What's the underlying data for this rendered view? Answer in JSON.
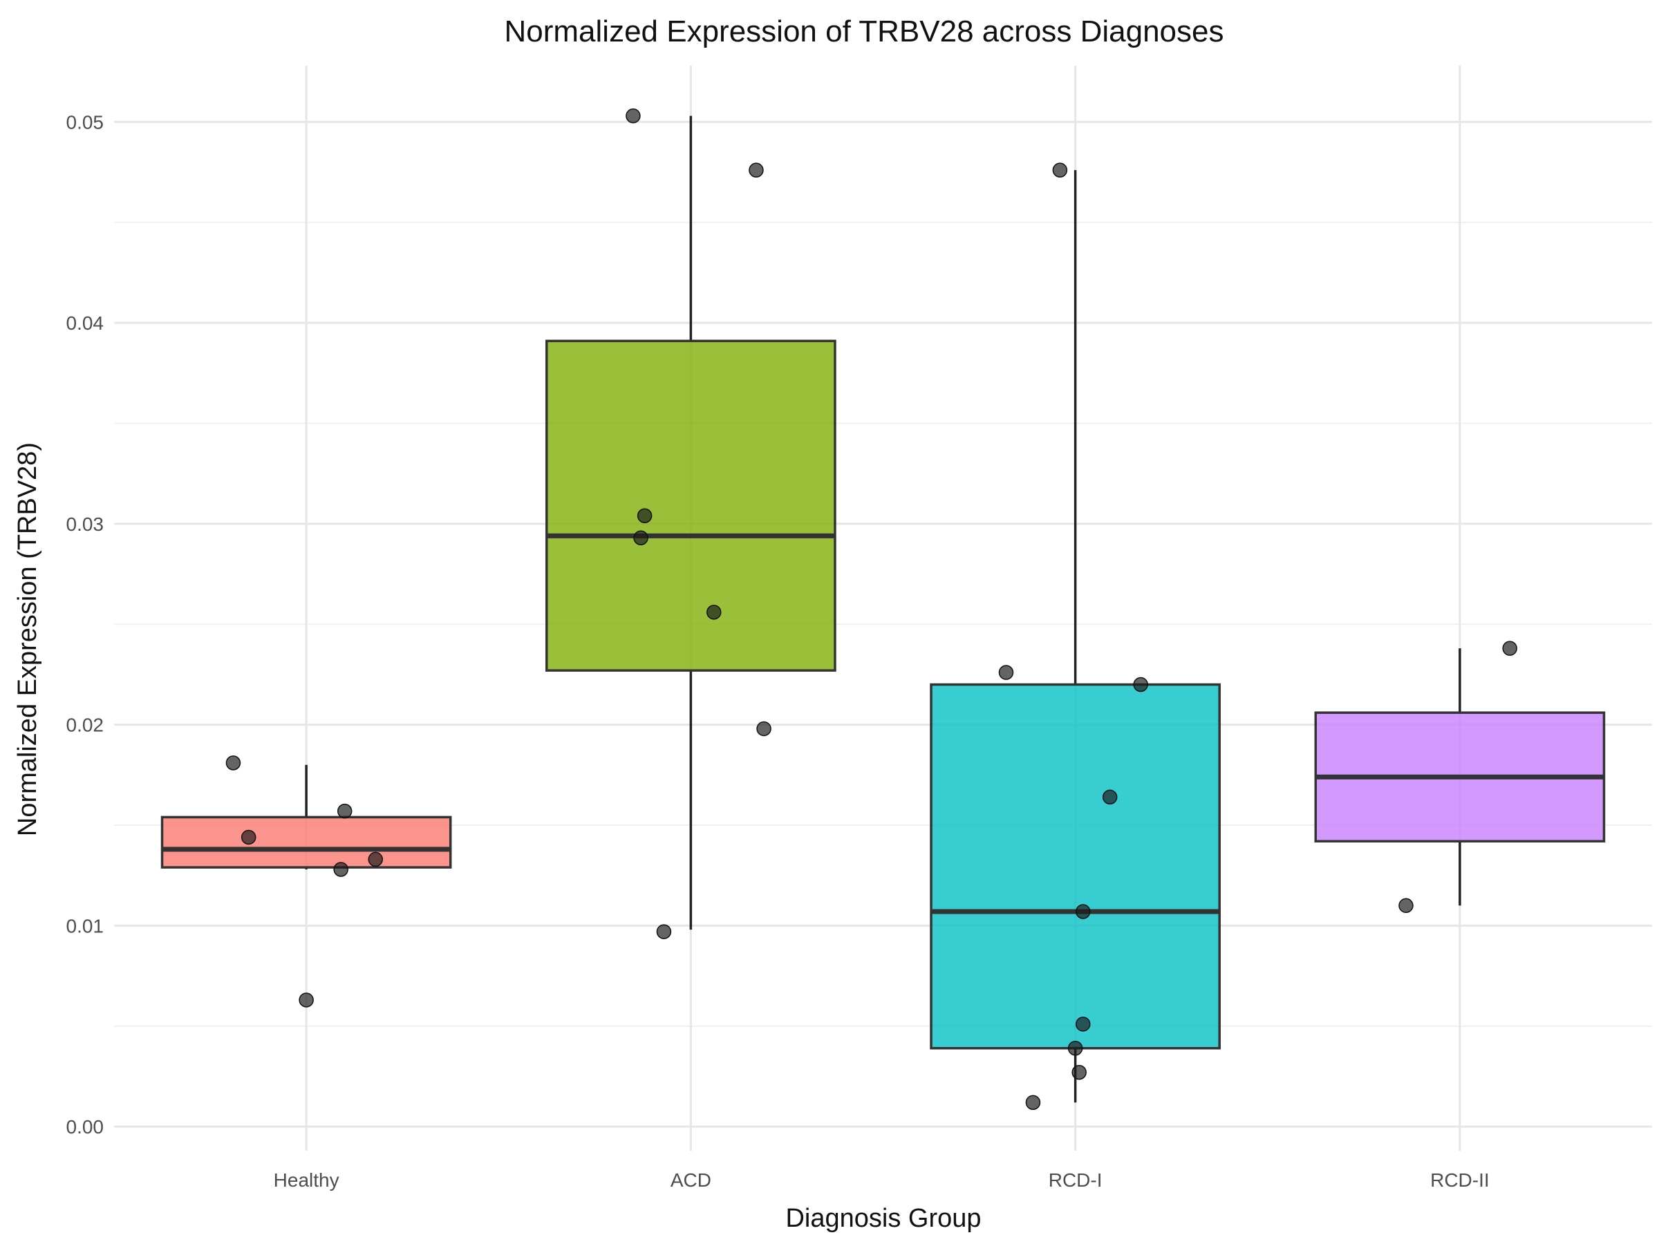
{
  "chart_data": {
    "type": "box",
    "title": "Normalized Expression of TRBV28 across Diagnoses",
    "xlabel": "Diagnosis Group",
    "ylabel": "Normalized Expression (TRBV28)",
    "ylim": [
      -0.0012,
      0.0528
    ],
    "y_ticks": [
      0.0,
      0.01,
      0.02,
      0.03,
      0.04,
      0.05
    ],
    "y_tick_labels": [
      "0.00",
      "0.01",
      "0.02",
      "0.03",
      "0.04",
      "0.05"
    ],
    "grid": true,
    "legend": "none",
    "categories": [
      "Healthy",
      "ACD",
      "RCD-I",
      "RCD-II"
    ],
    "boxes": [
      {
        "category": "Healthy",
        "color": "#F8766D",
        "q1": 0.0129,
        "median": 0.0138,
        "q3": 0.0154,
        "whisker_low": 0.0128,
        "whisker_high": 0.018
      },
      {
        "category": "ACD",
        "color": "#7CAE00",
        "q1": 0.0227,
        "median": 0.0294,
        "q3": 0.0391,
        "whisker_low": 0.0098,
        "whisker_high": 0.0503
      },
      {
        "category": "RCD-I",
        "color": "#00BFC4",
        "q1": 0.0039,
        "median": 0.0107,
        "q3": 0.022,
        "whisker_low": 0.0012,
        "whisker_high": 0.0476
      },
      {
        "category": "RCD-II",
        "color": "#C77CFF",
        "q1": 0.0142,
        "median": 0.0174,
        "q3": 0.0206,
        "whisker_low": 0.011,
        "whisker_high": 0.0238
      }
    ],
    "points": [
      {
        "category": "Healthy",
        "jitter": -0.19,
        "y": 0.0181
      },
      {
        "category": "Healthy",
        "jitter": -0.15,
        "y": 0.0144
      },
      {
        "category": "Healthy",
        "jitter": 0.1,
        "y": 0.0157
      },
      {
        "category": "Healthy",
        "jitter": 0.09,
        "y": 0.0128
      },
      {
        "category": "Healthy",
        "jitter": 0.18,
        "y": 0.0133
      },
      {
        "category": "Healthy",
        "jitter": 0.0,
        "y": 0.0063
      },
      {
        "category": "ACD",
        "jitter": -0.15,
        "y": 0.0503
      },
      {
        "category": "ACD",
        "jitter": 0.17,
        "y": 0.0476
      },
      {
        "category": "ACD",
        "jitter": -0.12,
        "y": 0.0304
      },
      {
        "category": "ACD",
        "jitter": -0.13,
        "y": 0.0293
      },
      {
        "category": "ACD",
        "jitter": 0.06,
        "y": 0.0256
      },
      {
        "category": "ACD",
        "jitter": 0.19,
        "y": 0.0198
      },
      {
        "category": "ACD",
        "jitter": -0.07,
        "y": 0.0097
      },
      {
        "category": "RCD-I",
        "jitter": -0.04,
        "y": 0.0476
      },
      {
        "category": "RCD-I",
        "jitter": -0.18,
        "y": 0.0226
      },
      {
        "category": "RCD-I",
        "jitter": 0.17,
        "y": 0.022
      },
      {
        "category": "RCD-I",
        "jitter": 0.09,
        "y": 0.0164
      },
      {
        "category": "RCD-I",
        "jitter": 0.02,
        "y": 0.0107
      },
      {
        "category": "RCD-I",
        "jitter": 0.02,
        "y": 0.0051
      },
      {
        "category": "RCD-I",
        "jitter": 0.0,
        "y": 0.0039
      },
      {
        "category": "RCD-I",
        "jitter": 0.01,
        "y": 0.0027
      },
      {
        "category": "RCD-I",
        "jitter": -0.11,
        "y": 0.0012
      },
      {
        "category": "RCD-II",
        "jitter": 0.13,
        "y": 0.0238
      },
      {
        "category": "RCD-II",
        "jitter": -0.14,
        "y": 0.011
      }
    ]
  }
}
